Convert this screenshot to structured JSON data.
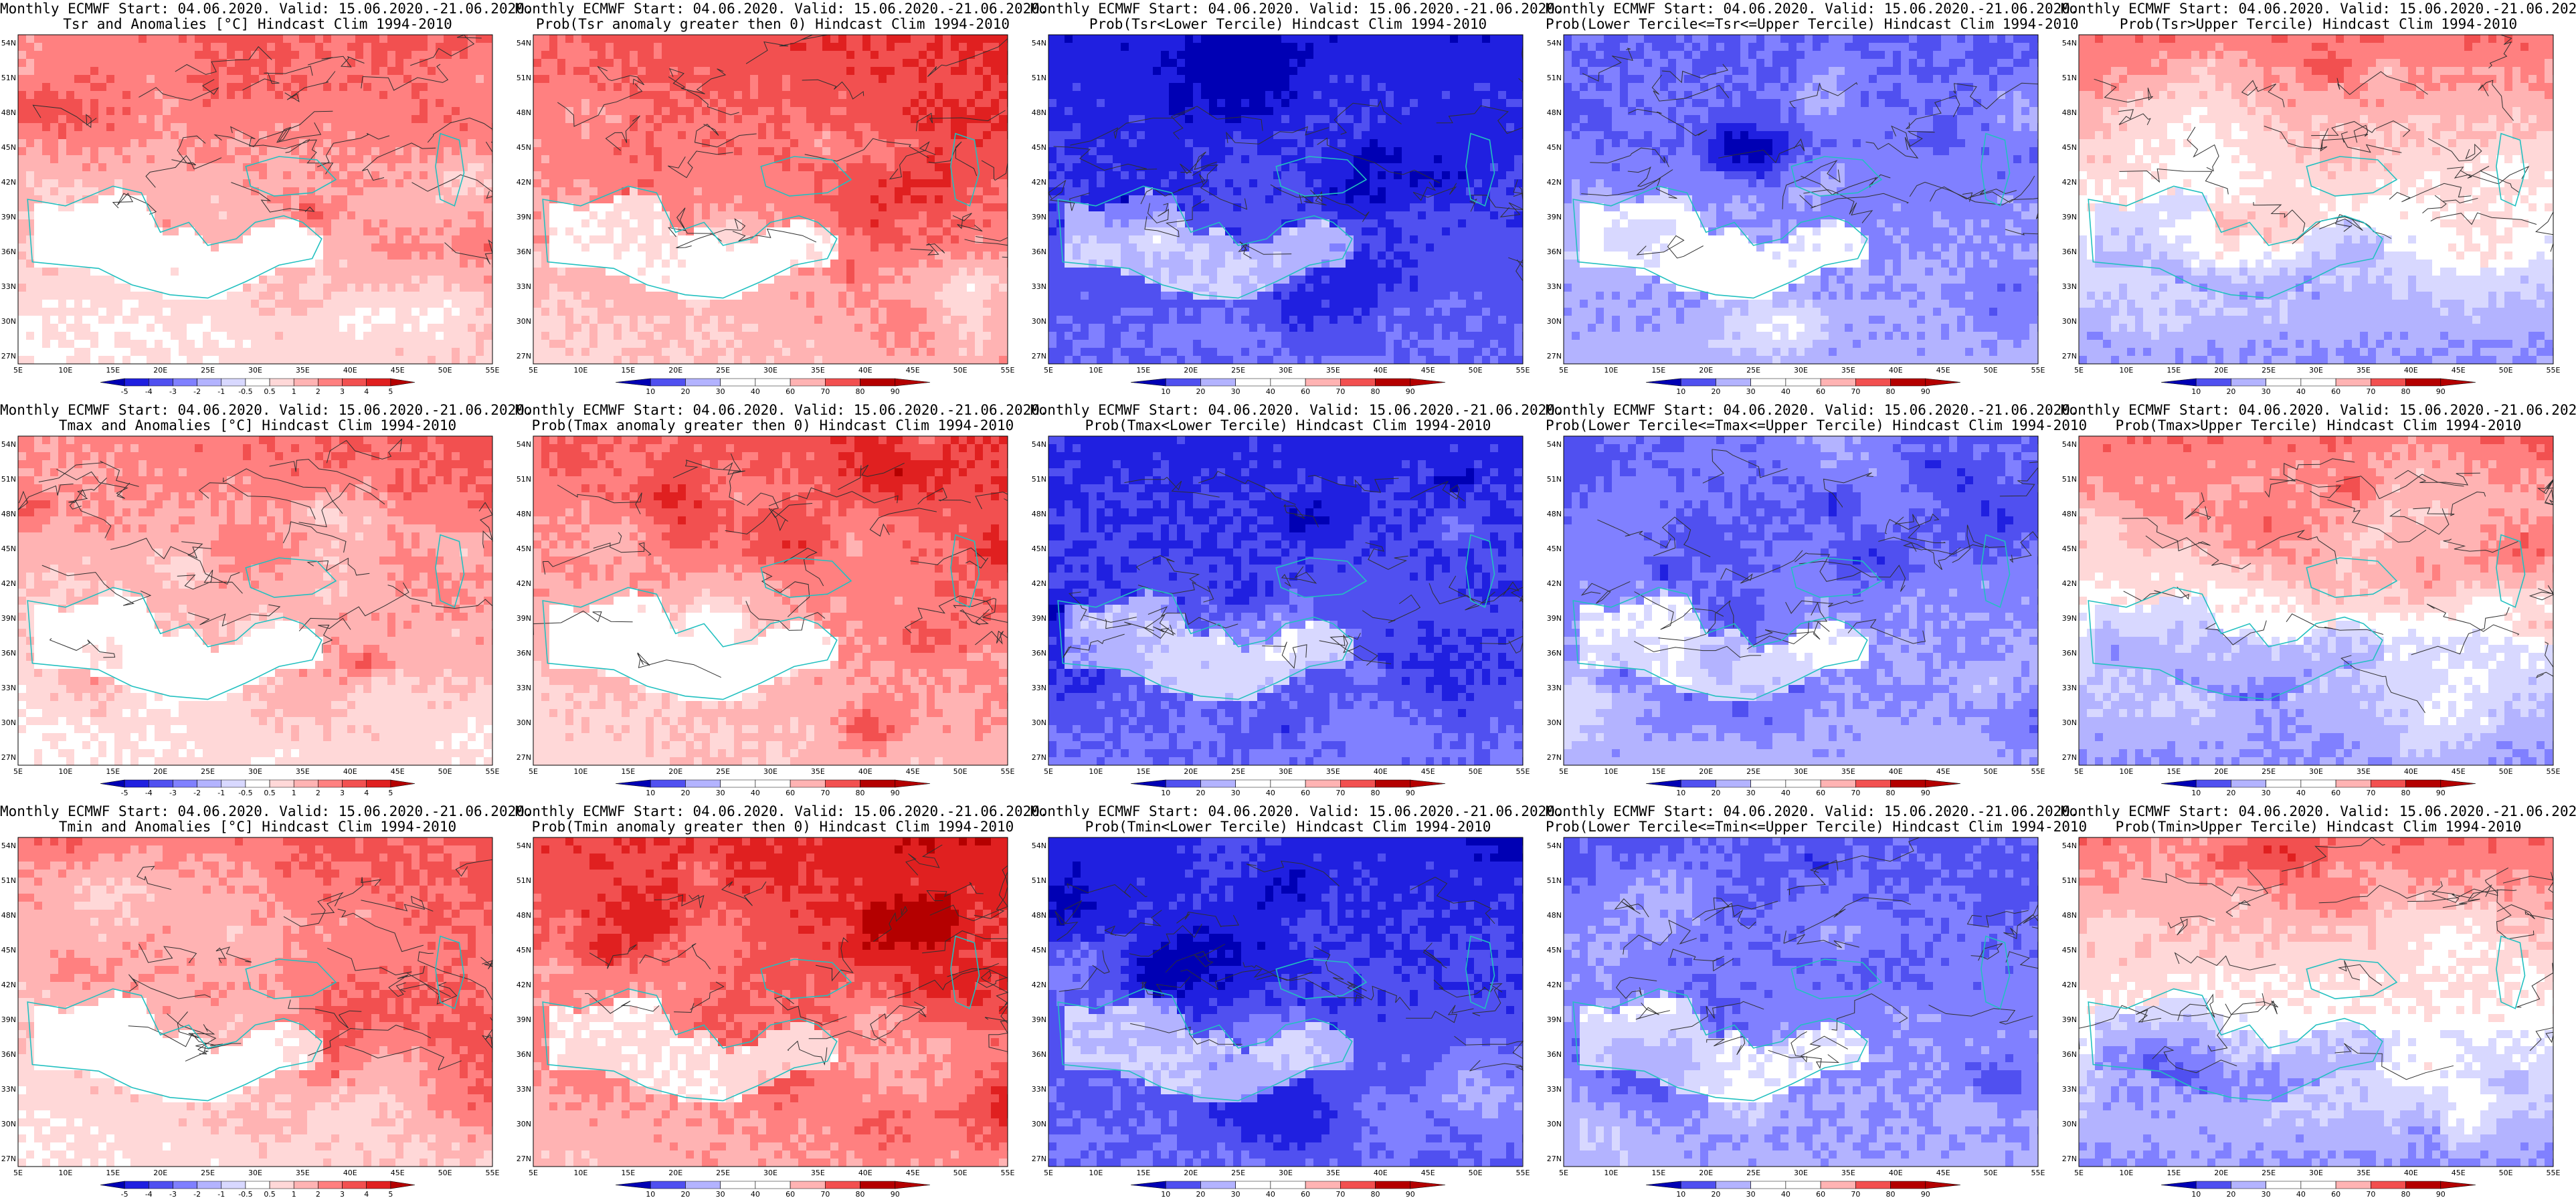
{
  "colors": {
    "warm": [
      "#ffffff",
      "#ffd8d8",
      "#ffb3b3",
      "#ff8080",
      "#f25050",
      "#e02020",
      "#b40000"
    ],
    "cold": [
      "#ffffff",
      "#d8d8ff",
      "#b3b3ff",
      "#8080ff",
      "#5050f0",
      "#2020e0",
      "#0000b4"
    ],
    "coast": "#22c0c0",
    "contour": "#303030"
  },
  "panels": [
    {
      "title_line1": "Monthly ECMWF Start: 04.06.2020. Valid: 15.06.2020.-21.06.2020.",
      "title_line2": "Tsr and Anomalies [°C] Hindcast Clim 1994-2010",
      "palette": "warm",
      "base": 1.0,
      "seed": 11,
      "colorbar": [
        "-5",
        "-4",
        "-3",
        "-2",
        "-1",
        "-0.5",
        "0.5",
        "1",
        "2",
        "3",
        "4",
        "5"
      ]
    },
    {
      "title_line1": "Monthly ECMWF Start: 04.06.2020. Valid: 15.06.2020.-21.06.2020.",
      "title_line2": "Prob(Tsr anomaly greater then 0) Hindcast Clim 1994-2010",
      "palette": "warm",
      "base": 1.8,
      "seed": 12,
      "colorbar": [
        "10",
        "20",
        "30",
        "40",
        "60",
        "70",
        "80",
        "90"
      ]
    },
    {
      "title_line1": "Monthly ECMWF Start: 04.06.2020. Valid: 15.06.2020.-21.06.2020.",
      "title_line2": "Prob(Tsr<Lower Tercile) Hindcast Clim 1994-2010",
      "palette": "cold",
      "base": 3.5,
      "seed": 13,
      "colorbar": [
        "10",
        "20",
        "30",
        "40",
        "60",
        "70",
        "80",
        "90"
      ]
    },
    {
      "title_line1": "Monthly ECMWF Start: 04.06.2020. Valid: 15.06.2020.-21.06.2020.",
      "title_line2": "Prob(Lower Tercile<=Tsr<=Upper Tercile) Hindcast Clim 1994-2010",
      "palette": "cold",
      "base": 2.0,
      "seed": 14,
      "colorbar": [
        "10",
        "20",
        "30",
        "40",
        "60",
        "70",
        "80",
        "90"
      ]
    },
    {
      "title_line1": "Monthly ECMWF Start: 04.06.2020. Valid: 15.06.2020.-21.06.2020.",
      "title_line2": "Prob(Tsr>Upper Tercile) Hindcast Clim 1994-2010",
      "palette": "mixed",
      "base": 0.0,
      "seed": 15,
      "colorbar": [
        "10",
        "20",
        "30",
        "40",
        "60",
        "70",
        "80",
        "90"
      ]
    },
    {
      "title_line1": "Monthly ECMWF Start: 04.06.2020. Valid: 15.06.2020.-21.06.2020.",
      "title_line2": "Tmax and Anomalies [°C] Hindcast Clim 1994-2010",
      "palette": "warm",
      "base": 0.9,
      "seed": 21,
      "colorbar": [
        "-5",
        "-4",
        "-3",
        "-2",
        "-1",
        "-0.5",
        "0.5",
        "1",
        "2",
        "3",
        "4",
        "5"
      ]
    },
    {
      "title_line1": "Monthly ECMWF Start: 04.06.2020. Valid: 15.06.2020.-21.06.2020.",
      "title_line2": "Prob(Tmax anomaly greater then 0) Hindcast Clim 1994-2010",
      "palette": "warm",
      "base": 1.6,
      "seed": 22,
      "colorbar": [
        "10",
        "20",
        "30",
        "40",
        "60",
        "70",
        "80",
        "90"
      ]
    },
    {
      "title_line1": "Monthly ECMWF Start: 04.06.2020. Valid: 15.06.2020.-21.06.2020.",
      "title_line2": "Prob(Tmax<Lower Tercile) Hindcast Clim 1994-2010",
      "palette": "cold",
      "base": 3.3,
      "seed": 23,
      "colorbar": [
        "10",
        "20",
        "30",
        "40",
        "60",
        "70",
        "80",
        "90"
      ]
    },
    {
      "title_line1": "Monthly ECMWF Start: 04.06.2020. Valid: 15.06.2020.-21.06.2020.",
      "title_line2": "Prob(Lower Tercile<=Tmax<=Upper Tercile) Hindcast Clim 1994-2010",
      "palette": "cold",
      "base": 2.0,
      "seed": 24,
      "colorbar": [
        "10",
        "20",
        "30",
        "40",
        "60",
        "70",
        "80",
        "90"
      ]
    },
    {
      "title_line1": "Monthly ECMWF Start: 04.06.2020. Valid: 15.06.2020.-21.06.2020.",
      "title_line2": "Prob(Tmax>Upper Tercile) Hindcast Clim 1994-2010",
      "palette": "mixed",
      "base": 0.0,
      "seed": 25,
      "colorbar": [
        "10",
        "20",
        "30",
        "40",
        "60",
        "70",
        "80",
        "90"
      ]
    },
    {
      "title_line1": "Monthly ECMWF Start: 04.06.2020. Valid: 15.06.2020.-21.06.2020.",
      "title_line2": "Tmin and Anomalies [°C] Hindcast Clim 1994-2010",
      "palette": "warm",
      "base": 1.1,
      "seed": 31,
      "colorbar": [
        "-5",
        "-4",
        "-3",
        "-2",
        "-1",
        "-0.5",
        "0.5",
        "1",
        "2",
        "3",
        "4",
        "5"
      ]
    },
    {
      "title_line1": "Monthly ECMWF Start: 04.06.2020. Valid: 15.06.2020.-21.06.2020.",
      "title_line2": "Prob(Tmin anomaly greater then 0) Hindcast Clim 1994-2010",
      "palette": "warm",
      "base": 2.4,
      "seed": 32,
      "colorbar": [
        "10",
        "20",
        "30",
        "40",
        "60",
        "70",
        "80",
        "90"
      ]
    },
    {
      "title_line1": "Monthly ECMWF Start: 04.06.2020. Valid: 15.06.2020.-21.06.2020.",
      "title_line2": "Prob(Tmin<Lower Tercile) Hindcast Clim 1994-2010",
      "palette": "cold",
      "base": 3.4,
      "seed": 33,
      "colorbar": [
        "10",
        "20",
        "30",
        "40",
        "60",
        "70",
        "80",
        "90"
      ]
    },
    {
      "title_line1": "Monthly ECMWF Start: 04.06.2020. Valid: 15.06.2020.-21.06.2020.",
      "title_line2": "Prob(Lower Tercile<=Tmin<=Upper Tercile) Hindcast Clim 1994-2010",
      "palette": "cold",
      "base": 2.2,
      "seed": 34,
      "colorbar": [
        "10",
        "20",
        "30",
        "40",
        "60",
        "70",
        "80",
        "90"
      ]
    },
    {
      "title_line1": "Monthly ECMWF Start: 04.06.2020. Valid: 15.06.2020.-21.06.2020.",
      "title_line2": "Prob(Tmin>Upper Tercile) Hindcast Clim 1994-2010",
      "palette": "mixed",
      "base": 0.3,
      "seed": 35,
      "colorbar": [
        "10",
        "20",
        "30",
        "40",
        "60",
        "70",
        "80",
        "90"
      ]
    }
  ],
  "lat_labels": [
    "54N",
    "51N",
    "48N",
    "45N",
    "42N",
    "39N",
    "36N",
    "33N",
    "30N",
    "27N"
  ],
  "lon_labels": [
    "5E",
    "10E",
    "15E",
    "20E",
    "25E",
    "30E",
    "35E",
    "40E",
    "45E",
    "50E",
    "55E"
  ]
}
